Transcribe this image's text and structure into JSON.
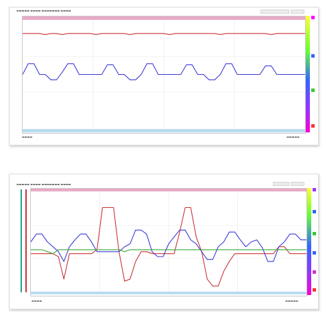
{
  "colors": {
    "red": "#cc3333",
    "blue": "#3a3ad8",
    "green": "#3aa63a",
    "black": "#222222",
    "pink_bar": "#e9a9c7",
    "blue_bar": "#b8dcef",
    "teal": "#20a090",
    "colorbar": [
      "#ff00ff",
      "#ff3333",
      "#ff9900",
      "#ffff00",
      "#66ff33",
      "#00cc99",
      "#3366ff",
      "#9933ff",
      "#ff00cc"
    ]
  },
  "icons": [
    "graph-icon",
    "settings-icon"
  ],
  "chart_data": [
    {
      "type": "line",
      "title": "",
      "xlabel": "",
      "ylabel": "",
      "x": [
        0,
        2,
        4,
        6,
        8,
        10,
        12,
        14,
        16,
        18,
        20,
        22,
        24,
        26,
        28,
        30,
        32,
        34,
        36,
        38,
        40,
        42,
        44,
        46,
        48,
        50,
        52,
        54,
        56,
        58,
        60,
        62,
        64,
        66,
        68,
        70,
        72,
        74,
        76,
        78,
        80,
        82,
        84,
        86,
        88,
        90,
        92,
        94,
        96,
        98,
        100
      ],
      "ylim": [
        0,
        100
      ],
      "grid": true,
      "series": [
        {
          "values": [
            88,
            88,
            88,
            88,
            87,
            88,
            88,
            87,
            88,
            88,
            88,
            88,
            88,
            87,
            88,
            88,
            88,
            88,
            88,
            87,
            88,
            88,
            88,
            88,
            88,
            88,
            87,
            88,
            88,
            88,
            88,
            88,
            88,
            88,
            88,
            87,
            88,
            88,
            88,
            88,
            88,
            88,
            88,
            88,
            87,
            88,
            88,
            88,
            88,
            88,
            88
          ],
          "color": "#cc3333"
        },
        {
          "values": [
            50,
            60,
            60,
            50,
            50,
            45,
            45,
            52,
            60,
            60,
            50,
            50,
            50,
            50,
            50,
            59,
            59,
            50,
            50,
            45,
            45,
            50,
            60,
            60,
            50,
            50,
            50,
            50,
            50,
            59,
            59,
            50,
            50,
            45,
            45,
            50,
            60,
            60,
            50,
            50,
            50,
            50,
            50,
            58,
            58,
            50,
            50,
            50,
            50,
            50,
            50
          ],
          "color": "#3a3ad8"
        }
      ]
    },
    {
      "type": "line",
      "title": "",
      "xlabel": "",
      "ylabel": "",
      "x": [
        0,
        2,
        4,
        6,
        8,
        10,
        12,
        14,
        16,
        18,
        20,
        22,
        24,
        26,
        28,
        30,
        32,
        34,
        36,
        38,
        40,
        42,
        44,
        46,
        48,
        50,
        52,
        54,
        56,
        58,
        60,
        62,
        64,
        66,
        68,
        70,
        72,
        74,
        76,
        78,
        80,
        82,
        84,
        86,
        88,
        90,
        92,
        94,
        96,
        98,
        100
      ],
      "ylim": [
        0,
        100
      ],
      "grid": true,
      "series": [
        {
          "values": [
            38,
            38,
            38,
            38,
            38,
            35,
            12,
            38,
            38,
            38,
            38,
            38,
            42,
            85,
            85,
            85,
            40,
            10,
            12,
            30,
            40,
            40,
            38,
            38,
            38,
            38,
            38,
            60,
            85,
            85,
            55,
            40,
            12,
            5,
            5,
            20,
            30,
            38,
            38,
            38,
            38,
            38,
            38,
            38,
            38,
            45,
            45,
            38,
            38,
            38,
            38
          ],
          "color": "#cc3333"
        },
        {
          "values": [
            50,
            58,
            58,
            50,
            45,
            40,
            30,
            45,
            52,
            58,
            58,
            50,
            40,
            40,
            40,
            40,
            40,
            45,
            48,
            62,
            62,
            58,
            40,
            35,
            35,
            48,
            55,
            62,
            62,
            52,
            48,
            40,
            32,
            32,
            45,
            50,
            60,
            60,
            52,
            45,
            50,
            52,
            44,
            30,
            30,
            45,
            50,
            58,
            58,
            52,
            52
          ],
          "color": "#3a3ad8"
        },
        {
          "values": [
            42,
            42,
            42,
            40,
            38,
            42,
            42,
            42,
            42,
            42,
            42,
            42,
            42,
            42,
            42,
            42,
            42,
            40,
            42,
            42,
            42,
            42,
            42,
            42,
            42,
            42,
            42,
            42,
            42,
            42,
            42,
            42,
            42,
            42,
            42,
            42,
            42,
            42,
            42,
            42,
            42,
            42,
            42,
            42,
            42,
            42,
            42,
            42,
            42,
            42,
            42
          ],
          "color": "#3aa63a"
        }
      ]
    }
  ]
}
